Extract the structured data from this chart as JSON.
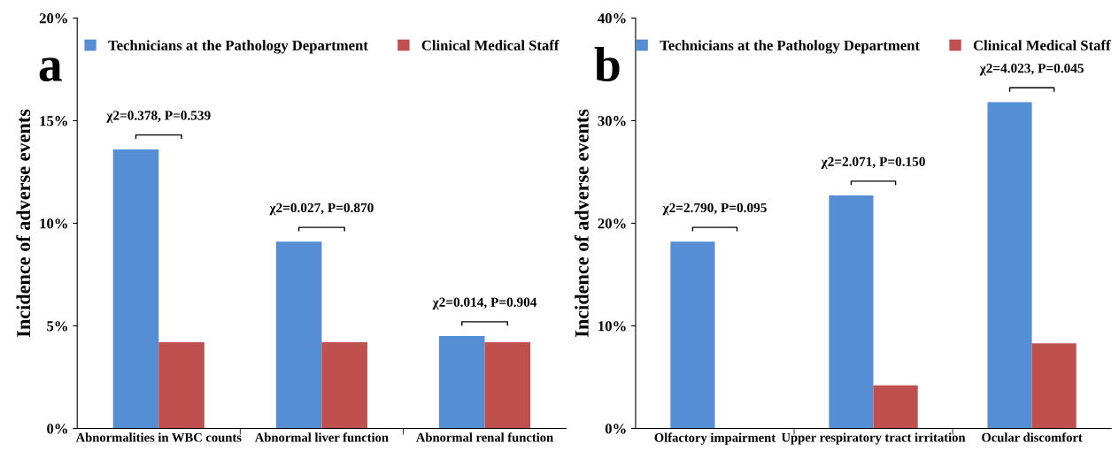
{
  "chart_data": [
    {
      "type": "bar",
      "title": "a",
      "ylabel": "Incidence of adverse events",
      "categories": [
        "Abnormalities in WBC counts",
        "Abnormal liver function",
        "Abnormal renal function"
      ],
      "series": [
        {
          "name": "Technicians at the Pathology Department",
          "color": "#558ed5",
          "values": [
            13.6,
            9.1,
            4.5
          ]
        },
        {
          "name": "Clinical Medical Staff",
          "color": "#c0504d",
          "values": [
            4.2,
            4.2,
            4.2
          ]
        }
      ],
      "ylim": [
        0,
        20
      ],
      "yticks": [
        {
          "value": 0,
          "label": "0%"
        },
        {
          "value": 5,
          "label": "5%"
        },
        {
          "value": 10,
          "label": "10%"
        },
        {
          "value": 15,
          "label": "15%"
        },
        {
          "value": 20,
          "label": "20%"
        }
      ],
      "annotations": [
        "χ2=0.378, P=0.539",
        "χ2=0.027, P=0.870",
        "χ2=0.014, P=0.904"
      ],
      "legend": "top",
      "grid": false
    },
    {
      "type": "bar",
      "title": "b",
      "ylabel": "Incidence of adverse events",
      "categories": [
        "Olfactory impairment",
        "Upper respiratory tract irritation",
        "Ocular discomfort"
      ],
      "series": [
        {
          "name": "Technicians at the Pathology Department",
          "color": "#558ed5",
          "values": [
            18.2,
            22.7,
            31.8
          ]
        },
        {
          "name": "Clinical Medical Staff",
          "color": "#c0504d",
          "values": [
            0,
            4.2,
            8.3
          ]
        }
      ],
      "ylim": [
        0,
        40
      ],
      "yticks": [
        {
          "value": 0,
          "label": "0%"
        },
        {
          "value": 10,
          "label": "10%"
        },
        {
          "value": 20,
          "label": "20%"
        },
        {
          "value": 30,
          "label": "30%"
        },
        {
          "value": 40,
          "label": "40%"
        }
      ],
      "annotations": [
        "χ2=2.790, P=0.095",
        "χ2=2.071, P=0.150",
        "χ2=4.023, P=0.045"
      ],
      "legend": "top",
      "grid": false
    }
  ]
}
